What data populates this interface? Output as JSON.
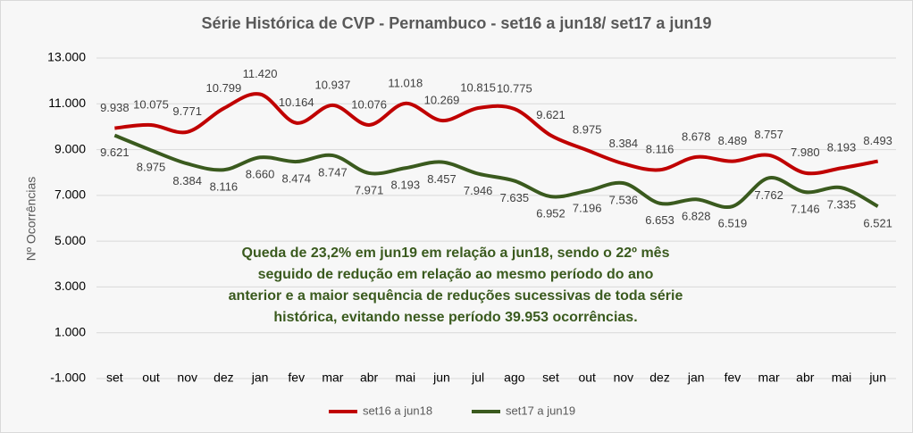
{
  "chart_data": {
    "type": "line",
    "title": "Série Histórica de CVP - Pernambuco - set16 a jun18/ set17 a jun19",
    "y_label": "Nº Ocorrências",
    "categories": [
      "set",
      "out",
      "nov",
      "dez",
      "jan",
      "fev",
      "mar",
      "abr",
      "mai",
      "jun",
      "jul",
      "ago",
      "set",
      "out",
      "nov",
      "dez",
      "jan",
      "fev",
      "mar",
      "abr",
      "mai",
      "jun"
    ],
    "series": [
      {
        "name": "set16 a jun18",
        "color": "#c00000",
        "values": [
          9938,
          10075,
          9771,
          10799,
          11420,
          10164,
          10937,
          10076,
          11018,
          10269,
          10815,
          10775,
          9621,
          8975,
          8384,
          8116,
          8678,
          8489,
          8757,
          7980,
          8193,
          8493
        ],
        "value_labels": [
          "9.938",
          "10.075",
          "9.771",
          "10.799",
          "11.420",
          "10.164",
          "10.937",
          "10.076",
          "11.018",
          "10.269",
          "10.815",
          "10.775",
          "9.621",
          "8.975",
          "8.384",
          "8.116",
          "8.678",
          "8.489",
          "8.757",
          "7.980",
          "8.193",
          "8.493"
        ]
      },
      {
        "name": "set17 a jun19",
        "color": "#3a5a1e",
        "values": [
          9621,
          8975,
          8384,
          8116,
          8660,
          8474,
          8747,
          7971,
          8193,
          8457,
          7946,
          7635,
          6952,
          7196,
          7536,
          6653,
          6828,
          6519,
          7762,
          7146,
          7335,
          6521
        ],
        "value_labels": [
          "9.621",
          "8.975",
          "8.384",
          "8.116",
          "8.660",
          "8.474",
          "8.747",
          "7.971",
          "8.193",
          "8.457",
          "7.946",
          "7.635",
          "6.952",
          "7.196",
          "7.536",
          "6.653",
          "6.828",
          "6.519",
          "7.762",
          "7.146",
          "7.335",
          "6.521"
        ]
      }
    ],
    "ylim": [
      -1000,
      13000
    ],
    "yticks": [
      {
        "value": -1000,
        "label": "-1.000"
      },
      {
        "value": 1000,
        "label": "1.000"
      },
      {
        "value": 3000,
        "label": "3.000"
      },
      {
        "value": 5000,
        "label": "5.000"
      },
      {
        "value": 7000,
        "label": "7.000"
      },
      {
        "value": 9000,
        "label": "9.000"
      },
      {
        "value": 11000,
        "label": "11.000"
      },
      {
        "value": 13000,
        "label": "13.000"
      }
    ],
    "grid": true,
    "legend": "bottom",
    "annotation": [
      "Queda de 23,2% em jun19 em relação a jun18, sendo o 22º mês",
      "seguido de redução em relação ao mesmo período do ano",
      "anterior e a maior sequência de reduções sucessivas de toda série",
      "histórica, evitando nesse período 39.953 ocorrências."
    ]
  }
}
